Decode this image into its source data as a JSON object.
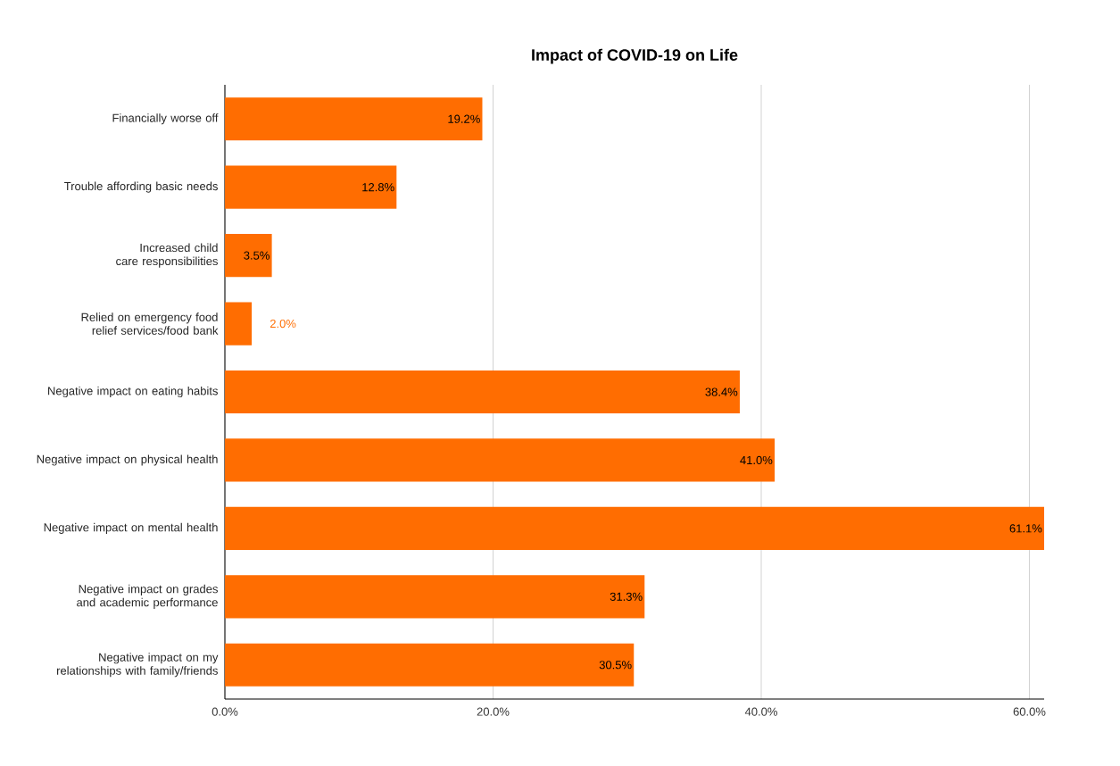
{
  "chart_data": {
    "type": "bar",
    "orientation": "horizontal",
    "title": "Impact of COVID-19 on Life",
    "categories": [
      "Financially worse off",
      "Trouble affording basic needs",
      "Increased child care responsibilities",
      "Relied on emergency food relief services/food bank",
      "Negative impact on eating habits",
      "Negative impact on physical health",
      "Negative impact on mental health",
      "Negative impact on grades and academic performance",
      "Negative impact on my relationships with family/friends"
    ],
    "values": [
      19.2,
      12.8,
      3.5,
      2.0,
      38.4,
      41.0,
      61.1,
      31.3,
      30.5
    ],
    "value_labels": [
      "19.2%",
      "12.8%",
      "3.5%",
      "2.0%",
      "38.4%",
      "41.0%",
      "61.1%",
      "31.3%",
      "30.5%"
    ],
    "color": "#ff6d01",
    "xlim": [
      0,
      61.1
    ],
    "xticks": [
      {
        "value": 0,
        "label": "0.0%"
      },
      {
        "value": 20,
        "label": "20.0%"
      },
      {
        "value": 40,
        "label": "40.0%"
      },
      {
        "value": 60,
        "label": "60.0%"
      }
    ],
    "grid": "x"
  }
}
